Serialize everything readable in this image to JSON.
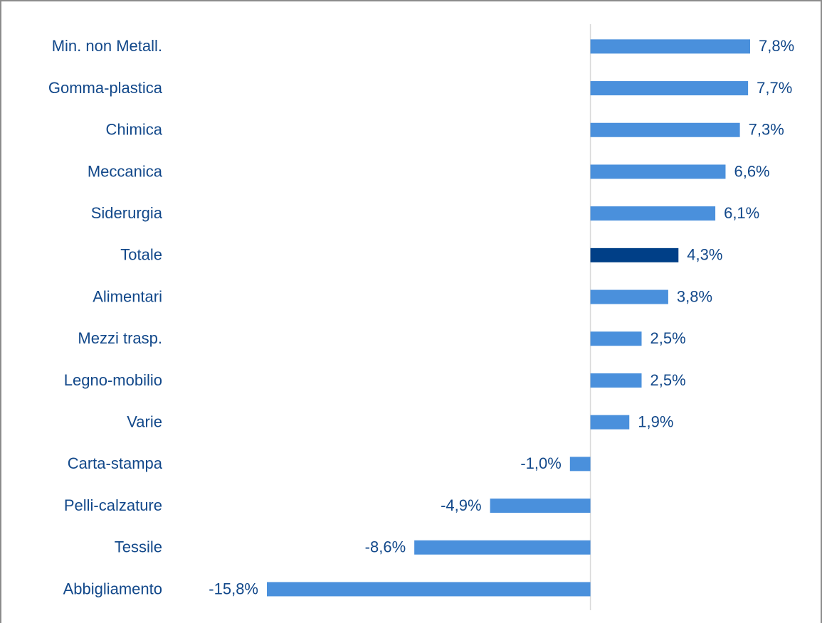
{
  "chart_data": {
    "type": "bar",
    "orientation": "horizontal",
    "categories": [
      "Min. non Metall.",
      "Gomma-plastica",
      "Chimica",
      "Meccanica",
      "Siderurgia",
      "Totale",
      "Alimentari",
      "Mezzi trasp.",
      "Legno-mobilio",
      "Varie",
      "Carta-stampa",
      "Pelli-calzature",
      "Tessile",
      "Abbigliamento"
    ],
    "values": [
      7.8,
      7.7,
      7.3,
      6.6,
      6.1,
      4.3,
      3.8,
      2.5,
      2.5,
      1.9,
      -1.0,
      -4.9,
      -8.6,
      -15.8
    ],
    "value_labels": [
      "7,8%",
      "7,7%",
      "7,3%",
      "6,6%",
      "6,1%",
      "4,3%",
      "3,8%",
      "2,5%",
      "2,5%",
      "1,9%",
      "-1,0%",
      "-4,9%",
      "-8,6%",
      "-15,8%"
    ],
    "colors": [
      "#4a90dc",
      "#4a90dc",
      "#4a90dc",
      "#4a90dc",
      "#4a90dc",
      "#003f87",
      "#4a90dc",
      "#4a90dc",
      "#4a90dc",
      "#4a90dc",
      "#4a90dc",
      "#4a90dc",
      "#4a90dc",
      "#4a90dc"
    ]
  }
}
